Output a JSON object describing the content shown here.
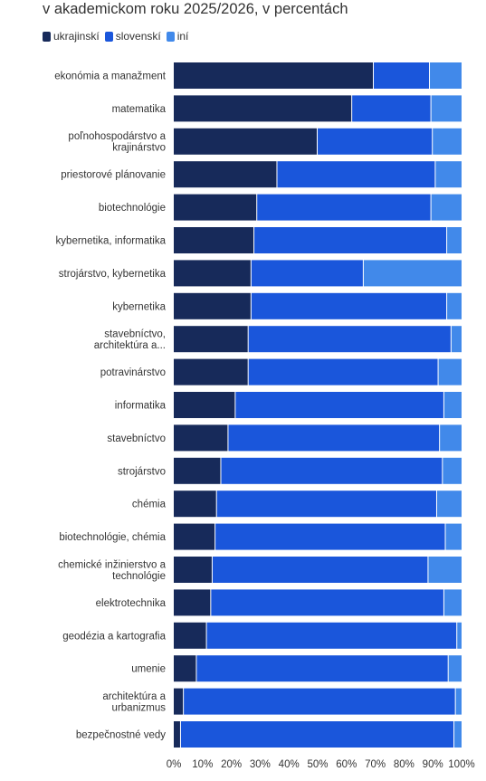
{
  "subtitle": "v akademickom roku 2025/2026, v percentách",
  "legend": [
    {
      "name": "ukrajinskí",
      "color": "#172a5a"
    },
    {
      "name": "slovenskí",
      "color": "#1a56db"
    },
    {
      "name": "iní",
      "color": "#4189ea"
    }
  ],
  "chart_data": {
    "type": "bar",
    "orientation": "horizontal",
    "stacked": true,
    "categories": [
      [
        "ekonómia a manažment"
      ],
      [
        "matematika"
      ],
      [
        "poľnohospodárstvo a",
        "krajinárstvo"
      ],
      [
        "priestorové plánovanie"
      ],
      [
        "biotechnológie"
      ],
      [
        "kybernetika, informatika"
      ],
      [
        "strojárstvo, kybernetika"
      ],
      [
        "kybernetika"
      ],
      [
        "stavebníctvo,",
        "architektúra a..."
      ],
      [
        "potravinárstvo"
      ],
      [
        "informatika"
      ],
      [
        "stavebníctvo"
      ],
      [
        "strojárstvo"
      ],
      [
        "chémia"
      ],
      [
        "biotechnológie, chémia"
      ],
      [
        "chemické inžinierstvo a",
        "technológie"
      ],
      [
        "elektrotechnika"
      ],
      [
        "geodézia a kartografia"
      ],
      [
        "umenie"
      ],
      [
        "architektúra a",
        "urbanizmus"
      ],
      [
        "bezpečnostné vedy"
      ]
    ],
    "series": [
      {
        "name": "ukrajinskí",
        "color": "#172a5a",
        "values": [
          69.5,
          62,
          50,
          36,
          29,
          28,
          27,
          27,
          26,
          26,
          21.5,
          19,
          16.5,
          15,
          14.5,
          13.5,
          13,
          11.5,
          8,
          3.5,
          2.5
        ]
      },
      {
        "name": "slovenskí",
        "color": "#1a56db",
        "values": [
          19.5,
          27.5,
          40,
          55,
          60.5,
          67,
          39,
          68,
          70.5,
          66,
          72.5,
          73.5,
          77,
          76.5,
          80,
          75,
          81,
          87,
          87.5,
          94.5,
          95
        ]
      },
      {
        "name": "iní",
        "color": "#4189ea",
        "values": [
          11,
          10.5,
          10,
          9,
          10.5,
          5,
          34,
          5,
          3.5,
          8,
          6,
          7.5,
          6.5,
          8.5,
          5.5,
          11.5,
          6,
          1.5,
          4.5,
          2,
          2.5
        ]
      }
    ],
    "x_ticks": [
      "0%",
      "10%",
      "20%",
      "30%",
      "40%",
      "50%",
      "60%",
      "70%",
      "80%",
      "90%",
      "100%"
    ],
    "xlim": [
      0,
      100
    ],
    "grid": false,
    "legend_position": "top-left"
  }
}
